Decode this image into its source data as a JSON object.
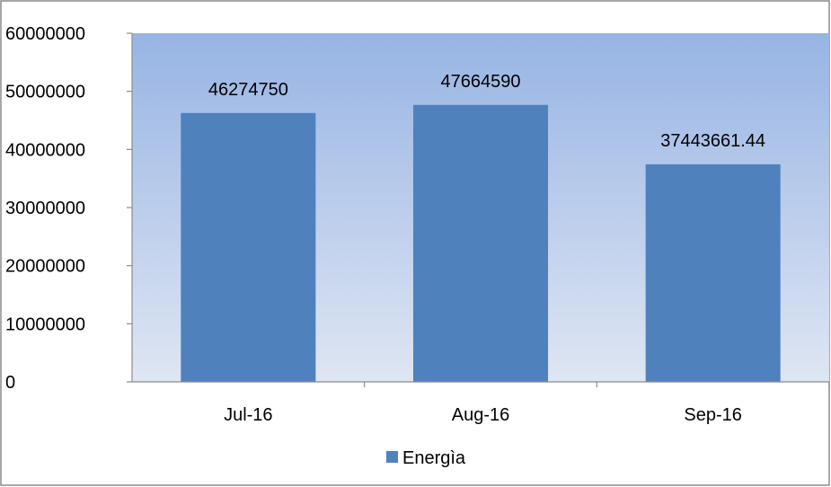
{
  "chart_data": {
    "type": "bar",
    "categories": [
      "Jul-16",
      "Aug-16",
      "Sep-16"
    ],
    "series": [
      {
        "name": "Energìa",
        "values": [
          46274750,
          47664590,
          37443661.44
        ],
        "labels": [
          "46274750",
          "47664590",
          "37443661.44"
        ],
        "color": "#4f81bd"
      }
    ],
    "y_ticks": [
      "0",
      "10000000",
      "20000000",
      "30000000",
      "40000000",
      "50000000",
      "60000000"
    ],
    "ylim": [
      0,
      60000000
    ],
    "grid": false,
    "legend": "bottom",
    "plot_gradient": [
      "#97b4e4",
      "#dfe6f3"
    ]
  }
}
